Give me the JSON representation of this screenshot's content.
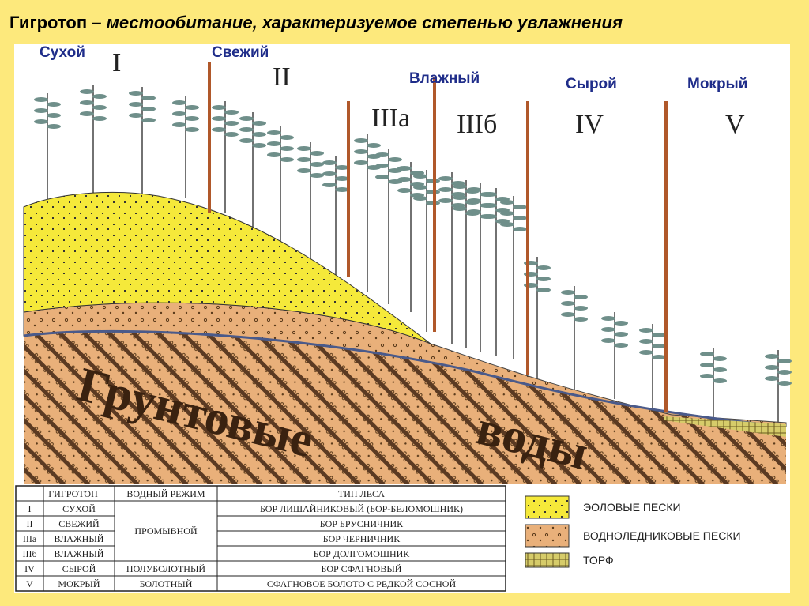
{
  "title": {
    "term": "Гигротоп",
    "definition": "– местообитание, характеризуемое степенью увлажнения"
  },
  "moisture_labels": [
    "Сухой",
    "Свежий",
    "Влажный",
    "Сырой",
    "Мокрый"
  ],
  "zones": [
    "I",
    "II",
    "IIIа",
    "IIIб",
    "IV",
    "V"
  ],
  "groundwater_label": [
    "Грунтовые",
    "воды"
  ],
  "table": {
    "headers": [
      "ГИГРОТОП",
      "ВОДНЫЙ РЕЖИМ",
      "ТИП ЛЕСА"
    ],
    "rows": [
      {
        "code": "I",
        "hygrotope": "СУХОЙ",
        "forest_type": "БОР ЛИШАЙНИКОВЫЙ (БОР-БЕЛОМОШНИК)"
      },
      {
        "code": "II",
        "hygrotope": "СВЕЖИЙ",
        "forest_type": "БОР БРУСНИЧНИК"
      },
      {
        "code": "IIIа",
        "hygrotope": "ВЛАЖНЫЙ",
        "forest_type": "БОР ЧЕРНИЧНИК"
      },
      {
        "code": "IIIб",
        "hygrotope": "ВЛАЖНЫЙ",
        "forest_type": "БОР ДОЛГОМОШНИК"
      },
      {
        "code": "IV",
        "hygrotope": "СЫРОЙ",
        "forest_type": "БОР СФАГНОВЫЙ"
      },
      {
        "code": "V",
        "hygrotope": "МОКРЫЙ",
        "forest_type": "СФАГНОВОЕ БОЛОТО С РЕДКОЙ СОСНОЙ"
      }
    ],
    "water_regimes": [
      "ПРОМЫВНОЙ",
      "ПОЛУБОЛОТНЫЙ",
      "БОЛОТНЫЙ"
    ]
  },
  "legend": [
    "ЭОЛОВЫЕ ПЕСКИ",
    "ВОДНОЛЕДНИКОВЫЕ ПЕСКИ",
    "ТОРФ"
  ]
}
